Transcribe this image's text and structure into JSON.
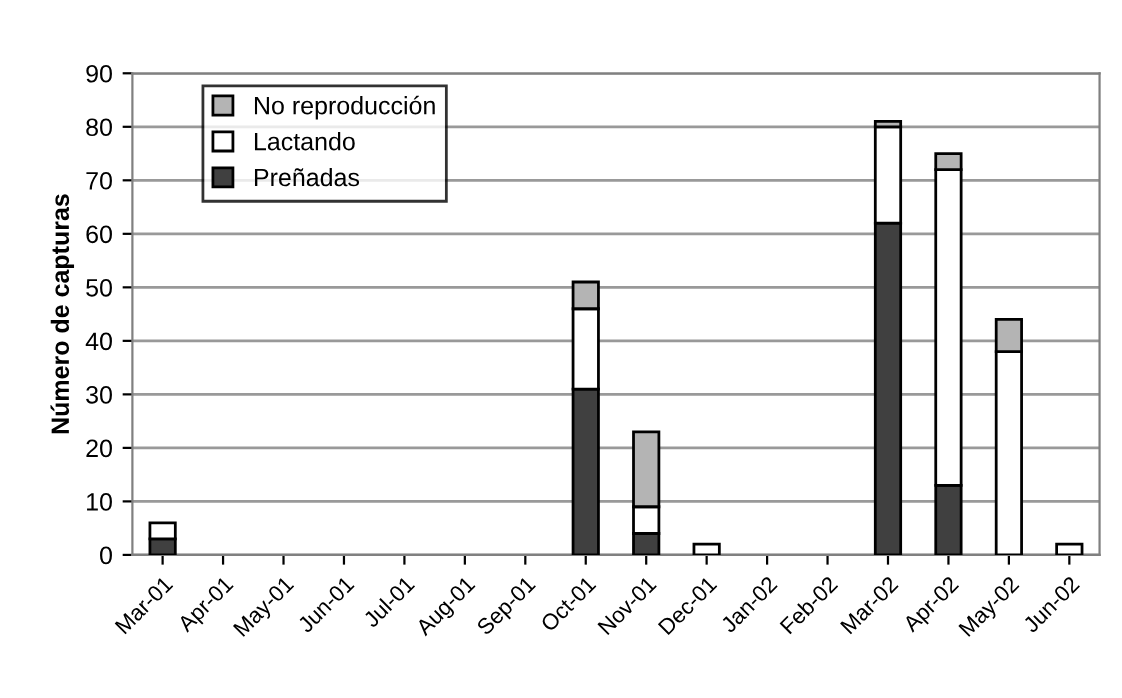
{
  "chart_data": {
    "type": "bar",
    "stacked": true,
    "ylabel": "Número de capturas",
    "categories": [
      "Mar-01",
      "Apr-01",
      "May-01",
      "Jun-01",
      "Jul-01",
      "Aug-01",
      "Sep-01",
      "Oct-01",
      "Nov-01",
      "Dec-01",
      "Jan-02",
      "Feb-02",
      "Mar-02",
      "Apr-02",
      "May-02",
      "Jun-02"
    ],
    "series": [
      {
        "name": "Preñadas",
        "color": "#404040",
        "values": [
          3,
          null,
          null,
          null,
          null,
          null,
          null,
          31,
          4,
          null,
          null,
          null,
          62,
          13,
          null,
          null
        ]
      },
      {
        "name": "Lactando",
        "color": "#ffffff",
        "values": [
          3,
          null,
          null,
          null,
          null,
          null,
          null,
          15,
          5,
          2,
          null,
          null,
          18,
          59,
          38,
          2
        ]
      },
      {
        "name": "No reproducción",
        "color": "#b4b4b4",
        "values": [
          null,
          null,
          null,
          null,
          null,
          null,
          null,
          5,
          14,
          null,
          null,
          null,
          1,
          3,
          6,
          null
        ]
      }
    ],
    "ylim": [
      0,
      90
    ],
    "yticks": [
      0,
      10,
      20,
      30,
      40,
      50,
      60,
      70,
      80,
      90
    ],
    "grid": "y",
    "legend": "top left"
  }
}
